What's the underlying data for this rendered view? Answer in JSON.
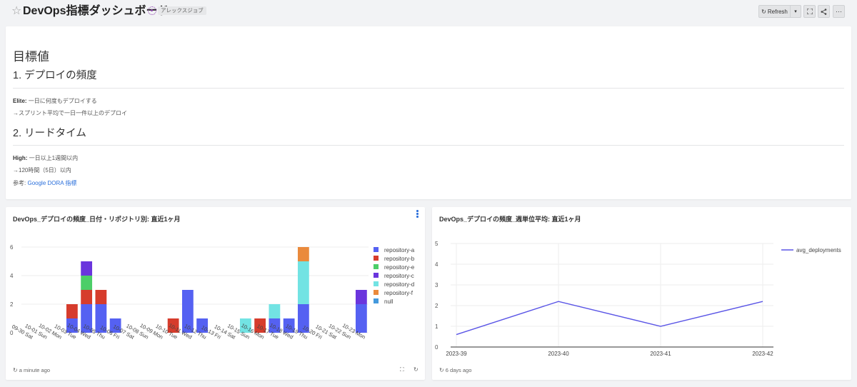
{
  "header": {
    "title": "DevOps指標ダッシュボード",
    "badge": "アレックスジョブ",
    "refresh_label": "Refresh"
  },
  "markdown": {
    "h1": "目標値",
    "sec1_title": "1. デプロイの頻度",
    "sec1_label": "Elite:",
    "sec1_text": "一日に何度もデプロイする",
    "sec1_sub": "→スプリント平均で一日一件以上のデプロイ",
    "sec2_title": "2. リードタイム",
    "sec2_label": "High:",
    "sec2_text": "一日以上1週間以内",
    "sec2_sub": "→120時間（5日）以内",
    "ref_label": "参考:",
    "ref_link": "Google DORA 指標"
  },
  "chart1_card": {
    "title": "DevOps_デプロイの頻度_日付・リポジトリ別: 直近1ヶ月",
    "footer": "a minute ago"
  },
  "chart2_card": {
    "title": "DevOps_デプロイの頻度_週単位平均: 直近1ヶ月",
    "footer": "6 days ago"
  },
  "colors": {
    "repository-a": "#5561f2",
    "repository-b": "#d63c2c",
    "repository-e": "#4cce68",
    "repository-c": "#6a35dd",
    "repository-d": "#72e3e3",
    "repository-f": "#ea8a3c",
    "null": "#4499dd",
    "line": "#5a55e6"
  },
  "chart_data": [
    {
      "type": "bar",
      "stacked": true,
      "title": "DevOps_デプロイの頻度_日付・リポジトリ別: 直近1ヶ月",
      "categories": [
        "09-30 Sat",
        "10-01 Sun",
        "10-02 Mon",
        "10-03 Tue",
        "10-04 Wed",
        "10-05 Thu",
        "10-06 Fri",
        "10-07 Sat",
        "10-08 Sun",
        "10-09 Mon",
        "10-10 Tue",
        "10-11 Wed",
        "10-12 Thu",
        "10-13 Fri",
        "10-14 Sat",
        "10-15 Sun",
        "10-16 Mon",
        "10-17 Tue",
        "10-18 Wed",
        "10-19 Thu",
        "10-20 Fri",
        "10-21 Sat",
        "10-22 Sun",
        "10-23 Mon"
      ],
      "series": [
        {
          "name": "repository-a",
          "values": [
            0,
            0,
            0,
            1,
            2,
            2,
            1,
            0,
            0,
            0,
            0,
            3,
            1,
            0,
            0,
            0,
            0,
            1,
            1,
            2,
            0,
            0,
            0,
            2
          ]
        },
        {
          "name": "repository-b",
          "values": [
            0,
            0,
            0,
            1,
            1,
            1,
            0,
            0,
            0,
            0,
            1,
            0,
            0,
            0,
            0,
            0,
            1,
            0,
            0,
            0,
            0,
            0,
            0,
            0
          ]
        },
        {
          "name": "repository-e",
          "values": [
            0,
            0,
            0,
            0,
            1,
            0,
            0,
            0,
            0,
            0,
            0,
            0,
            0,
            0,
            0,
            0,
            0,
            0,
            0,
            0,
            0,
            0,
            0,
            0
          ]
        },
        {
          "name": "repository-c",
          "values": [
            0,
            0,
            0,
            0,
            1,
            0,
            0,
            0,
            0,
            0,
            0,
            0,
            0,
            0,
            0,
            0,
            0,
            0,
            0,
            0,
            0,
            0,
            0,
            1
          ]
        },
        {
          "name": "repository-d",
          "values": [
            0,
            0,
            0,
            0,
            0,
            0,
            0,
            0,
            0,
            0,
            0,
            0,
            0,
            0,
            0,
            1,
            0,
            1,
            0,
            3,
            0,
            0,
            0,
            0
          ]
        },
        {
          "name": "repository-f",
          "values": [
            0,
            0,
            0,
            0,
            0,
            0,
            0,
            0,
            0,
            0,
            0,
            0,
            0,
            0,
            0,
            0,
            0,
            0,
            0,
            1,
            0,
            0,
            0,
            0
          ]
        },
        {
          "name": "null",
          "values": [
            0,
            0,
            0,
            0,
            0,
            0,
            0,
            0,
            0,
            0,
            0,
            0,
            0,
            0,
            0,
            0,
            0,
            0,
            0,
            0,
            0,
            0,
            0,
            0
          ]
        }
      ],
      "ylim": [
        0,
        6
      ],
      "yticks": [
        0,
        2,
        4,
        6
      ],
      "grid": true,
      "legend": "right"
    },
    {
      "type": "line",
      "title": "DevOps_デプロイの頻度_週単位平均: 直近1ヶ月",
      "x": [
        "2023-39",
        "2023-40",
        "2023-41",
        "2023-42"
      ],
      "series": [
        {
          "name": "avg_deployments",
          "values": [
            0.6,
            2.2,
            1.0,
            2.2
          ]
        }
      ],
      "ylim": [
        0,
        5
      ],
      "yticks": [
        0,
        1,
        2,
        3,
        4,
        5
      ],
      "grid": true,
      "legend": "right"
    }
  ]
}
